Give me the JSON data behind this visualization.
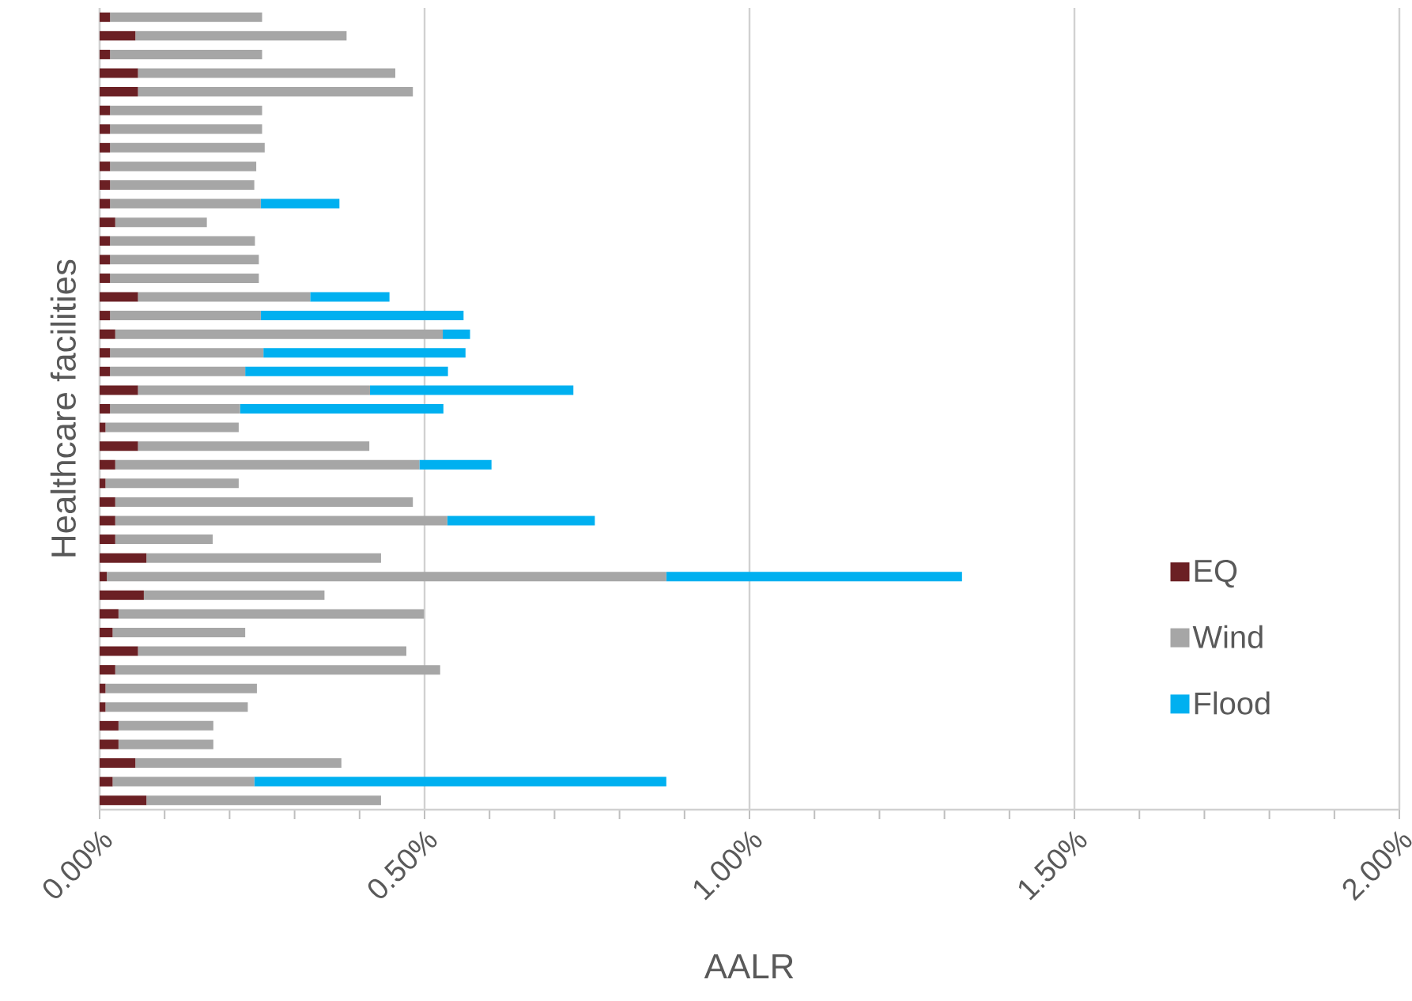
{
  "chart_data": {
    "type": "bar",
    "orientation": "horizontal",
    "stacked": true,
    "xlabel": "AALR",
    "ylabel": "Healthcare facilities",
    "categories": [
      null,
      null,
      null,
      null,
      null,
      null,
      null,
      null,
      null,
      null,
      null,
      null,
      null,
      null,
      null,
      null,
      null,
      null,
      null,
      null,
      null,
      null,
      null,
      null,
      null,
      null,
      null,
      null,
      null,
      null,
      null,
      null,
      null,
      null,
      null,
      null,
      null,
      null,
      null,
      null,
      null,
      null,
      null
    ],
    "series": [
      {
        "name": "EQ",
        "color": "#6b2024",
        "values": [
          0.016,
          0.055,
          0.016,
          0.059,
          0.059,
          0.016,
          0.016,
          0.016,
          0.016,
          0.016,
          0.016,
          0.024,
          0.016,
          0.016,
          0.016,
          0.059,
          0.016,
          0.024,
          0.016,
          0.016,
          0.059,
          0.016,
          0.009,
          0.059,
          0.024,
          0.009,
          0.024,
          0.024,
          0.024,
          0.072,
          0.011,
          0.068,
          0.029,
          0.02,
          0.059,
          0.024,
          0.009,
          0.009,
          0.029,
          0.029,
          0.055,
          0.02,
          0.072
        ]
      },
      {
        "name": "Wind",
        "color": "#a6a6a6",
        "values": [
          0.234,
          0.325,
          0.234,
          0.396,
          0.423,
          0.234,
          0.234,
          0.238,
          0.225,
          0.222,
          0.232,
          0.141,
          0.223,
          0.229,
          0.229,
          0.265,
          0.232,
          0.504,
          0.236,
          0.208,
          0.357,
          0.2,
          0.205,
          0.356,
          0.468,
          0.205,
          0.458,
          0.511,
          0.15,
          0.361,
          0.861,
          0.278,
          0.47,
          0.204,
          0.413,
          0.5,
          0.233,
          0.219,
          0.146,
          0.146,
          0.317,
          0.218,
          0.361
        ]
      },
      {
        "name": "Flood",
        "color": "#00b0f0",
        "values": [
          null,
          null,
          null,
          null,
          null,
          null,
          null,
          null,
          null,
          null,
          0.121,
          null,
          null,
          null,
          null,
          0.122,
          0.312,
          0.042,
          0.311,
          0.312,
          0.313,
          0.313,
          null,
          null,
          0.111,
          null,
          null,
          0.227,
          null,
          null,
          0.455,
          null,
          null,
          null,
          null,
          null,
          null,
          null,
          null,
          null,
          null,
          0.634,
          null
        ]
      }
    ],
    "xlim": [
      0,
      2
    ],
    "xticks": [
      {
        "value": 0,
        "label": "0.00%"
      },
      {
        "value": 0.5,
        "label": "0.50%"
      },
      {
        "value": 1,
        "label": "1.00%"
      },
      {
        "value": 1.5,
        "label": "1.50%"
      },
      {
        "value": 2,
        "label": "2.00%"
      }
    ],
    "grid": "x",
    "legend": "right",
    "tick_labels": "x"
  }
}
